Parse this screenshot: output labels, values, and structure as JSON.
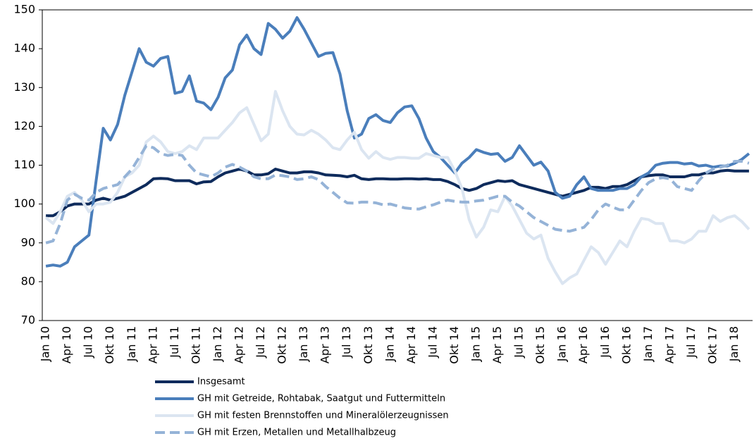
{
  "chart_data": {
    "type": "line",
    "categories": [
      "Jan 10",
      null,
      null,
      "Apr 10",
      null,
      null,
      "Jul 10",
      null,
      null,
      "Okt 10",
      null,
      null,
      "Jan 11",
      null,
      null,
      "Apr 11",
      null,
      null,
      "Jul 11",
      null,
      null,
      "Okt 11",
      null,
      null,
      "Jan 12",
      null,
      null,
      "Apr 12",
      null,
      null,
      "Jul 12",
      null,
      null,
      "Okt 12",
      null,
      null,
      "Jan 13",
      null,
      null,
      "Apr 13",
      null,
      null,
      "Jul 13",
      null,
      null,
      "Okt 13",
      null,
      null,
      "Jan 14",
      null,
      null,
      "Apr 14",
      null,
      null,
      "Jul 14",
      null,
      null,
      "Okt 14",
      null,
      null,
      "Jan 15",
      null,
      null,
      "Apr 15",
      null,
      null,
      "Jul 15",
      null,
      null,
      "Okt 15",
      null,
      null,
      "Jan 16",
      null,
      null,
      "Apr 16",
      null,
      null,
      "Jul 16",
      null,
      null,
      "Okt 16",
      null,
      null,
      "Jan 17",
      null,
      null,
      "Apr 17",
      null,
      null,
      "Jul 17",
      null,
      null,
      "Okt 17",
      null,
      null,
      "Jan 18",
      null,
      null
    ],
    "series": [
      {
        "name": "Insgesamt",
        "color": "#0e2b5c",
        "dashed": false,
        "values": [
          97,
          97,
          98,
          99.5,
          100,
          100,
          100,
          101,
          101.5,
          101,
          101.5,
          102,
          103,
          104,
          105,
          106.5,
          106.6,
          106.5,
          106,
          106,
          106,
          105.2,
          105.7,
          105.8,
          107,
          108,
          108.5,
          109,
          108.5,
          107.5,
          107.5,
          107.8,
          109,
          108.5,
          108,
          108,
          108.3,
          108.3,
          108,
          107.5,
          107.4,
          107.3,
          107,
          107.4,
          106.5,
          106.3,
          106.5,
          106.5,
          106.4,
          106.4,
          106.5,
          106.5,
          106.4,
          106.5,
          106.3,
          106.3,
          105.8,
          105,
          104,
          103.5,
          104,
          105,
          105.5,
          106,
          105.8,
          106,
          105,
          104.5,
          104,
          103.5,
          103,
          102.5,
          102,
          102.5,
          103,
          103.5,
          104.3,
          104.3,
          104,
          104.5,
          104.5,
          105,
          106,
          107,
          107.3,
          107.5,
          107.5,
          107,
          107,
          107,
          107.5,
          107.5,
          108,
          108,
          108.5,
          108.7,
          108.5,
          108.5,
          108.5
        ]
      },
      {
        "name": "GH mit Getreide, Rohtabak, Saatgut und Futtermitteln",
        "color": "#4a7ebb",
        "dashed": false,
        "values": [
          84,
          84.3,
          84,
          85,
          89,
          90.5,
          92,
          106,
          119.5,
          116.5,
          120.5,
          128,
          134,
          140,
          136.5,
          135.5,
          137.5,
          138,
          128.5,
          129,
          133,
          126.5,
          126,
          124.3,
          127.5,
          132.5,
          134.5,
          141,
          143.5,
          140,
          138.5,
          146.5,
          145,
          142.7,
          144.5,
          148,
          145,
          141.5,
          138,
          138.8,
          139,
          133.5,
          124,
          117,
          118,
          122,
          123,
          121.5,
          121,
          123.5,
          125,
          125.3,
          122,
          117,
          113.5,
          112,
          110,
          108,
          110.5,
          112,
          114,
          113.3,
          112.8,
          113,
          111,
          112,
          115,
          112.5,
          110,
          110.8,
          108.5,
          103,
          101.5,
          102,
          105,
          107,
          104,
          103.5,
          103.5,
          103.5,
          104,
          104,
          105,
          107,
          108,
          110,
          110.5,
          110.7,
          110.7,
          110.3,
          110.5,
          109.8,
          110,
          109.5,
          109.8,
          109.8,
          110.5,
          111.5,
          113
        ]
      },
      {
        "name": "GH mit festen Brennstoffen und Mineralölerzeugnissen",
        "color": "#dbe5f1",
        "dashed": false,
        "values": [
          96.5,
          95,
          98,
          102,
          103,
          101,
          98,
          100,
          100,
          100.5,
          103,
          107,
          108,
          110,
          116,
          117.5,
          116,
          113.5,
          113,
          113.5,
          115,
          114,
          117,
          117,
          117,
          119,
          121,
          123.5,
          124.8,
          120.5,
          116.3,
          118,
          129,
          124,
          120,
          118,
          117.8,
          119,
          118,
          116.5,
          114.5,
          114,
          116.5,
          118.5,
          114,
          111.8,
          113.5,
          112,
          111.5,
          112,
          112,
          111.8,
          111.8,
          113,
          112.5,
          112,
          112,
          108.5,
          104,
          96,
          91.5,
          94,
          98.5,
          98,
          102,
          99.5,
          96,
          92.5,
          91,
          92,
          86,
          82.5,
          79.5,
          81,
          82,
          85.5,
          89,
          87.5,
          84.5,
          87.5,
          90.5,
          89,
          93,
          96.3,
          96,
          95,
          95,
          90.5,
          90.5,
          90,
          91,
          93,
          93,
          97,
          95.5,
          96.5,
          97,
          95.5,
          93.5
        ]
      },
      {
        "name": "GH mit Erzen, Metallen und Metallhalbzeug",
        "color": "#95b3d7",
        "dashed": true,
        "values": [
          90,
          90.5,
          95,
          101,
          102.5,
          101.5,
          101,
          103,
          104,
          104.5,
          105,
          107,
          109,
          112,
          115,
          114.5,
          113,
          112.5,
          112.8,
          112.5,
          110,
          108,
          107.5,
          107,
          108,
          109.5,
          110.2,
          109.5,
          108.5,
          107,
          106.5,
          106.5,
          107.5,
          107.3,
          107,
          106.3,
          106.5,
          107,
          106.3,
          104.5,
          103,
          101.5,
          100.3,
          100.2,
          100.5,
          100.5,
          100.3,
          99.8,
          100,
          99.5,
          99,
          98.8,
          98.7,
          99.3,
          99.8,
          100.5,
          101,
          100.7,
          100.5,
          100.5,
          100.8,
          101,
          101.5,
          102,
          102,
          100.5,
          99.5,
          98,
          96.5,
          95.5,
          94.5,
          93.5,
          93.2,
          93,
          93.5,
          94,
          96,
          98.5,
          100,
          99.2,
          98.5,
          98.5,
          101,
          103.5,
          105.5,
          106.5,
          106.8,
          106.5,
          104.5,
          104,
          103.5,
          106,
          108,
          109,
          109.5,
          110,
          111,
          111,
          110.5
        ]
      }
    ],
    "ylim": [
      70,
      150
    ],
    "yticks": [
      70,
      80,
      90,
      100,
      110,
      120,
      130,
      140,
      150
    ],
    "grid": false
  }
}
